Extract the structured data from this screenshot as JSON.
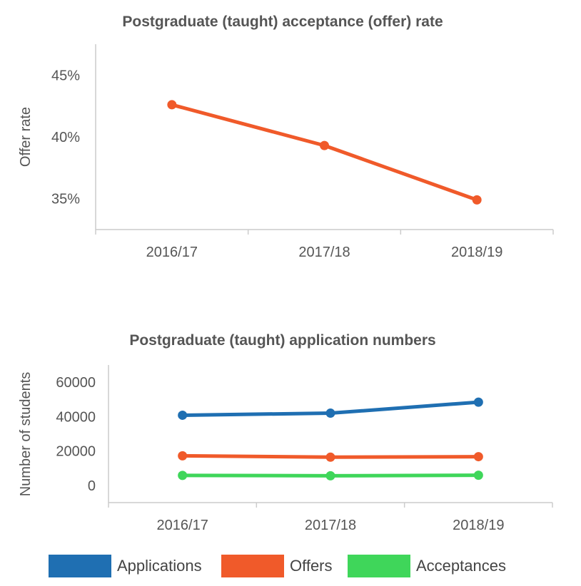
{
  "chart_data": [
    {
      "type": "line",
      "title": "Postgraduate (taught) acceptance (offer) rate",
      "xlabel": "",
      "ylabel": "Offer rate",
      "categories": [
        "2016/17",
        "2017/18",
        "2018/19"
      ],
      "y_ticks": [
        35,
        40,
        45
      ],
      "y_tick_labels": [
        "35%",
        "40%",
        "45%"
      ],
      "ylim": [
        32.5,
        47.5
      ],
      "grid": false,
      "series": [
        {
          "values": [
            42.6,
            39.3,
            34.9
          ],
          "color": "#f05a2a"
        }
      ]
    },
    {
      "type": "line",
      "title": "Postgraduate (taught) application numbers",
      "xlabel": "",
      "ylabel": "Number of students",
      "categories": [
        "2016/17",
        "2017/18",
        "2018/19"
      ],
      "y_ticks": [
        0,
        20000,
        40000,
        60000
      ],
      "y_tick_labels": [
        "0",
        "20000",
        "40000",
        "60000"
      ],
      "ylim": [
        -10000,
        70000
      ],
      "grid": false,
      "legend_position": "bottom",
      "series": [
        {
          "name": "Applications",
          "values": [
            40800,
            42000,
            48400
          ],
          "color": "#1f6fb2"
        },
        {
          "name": "Offers",
          "values": [
            17200,
            16400,
            16700
          ],
          "color": "#f05a2a"
        },
        {
          "name": "Acceptances",
          "values": [
            5800,
            5600,
            5900
          ],
          "color": "#3fd65a"
        }
      ]
    }
  ]
}
